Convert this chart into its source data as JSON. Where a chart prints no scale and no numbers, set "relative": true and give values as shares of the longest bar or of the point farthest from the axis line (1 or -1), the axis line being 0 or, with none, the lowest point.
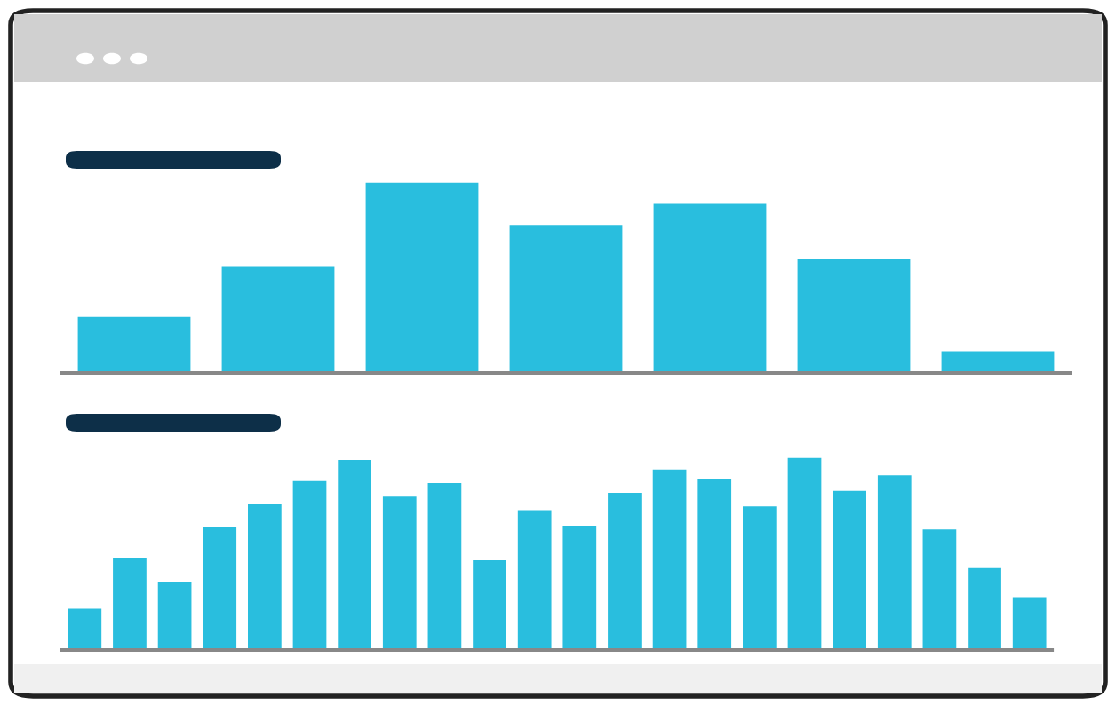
{
  "chart_data": [
    {
      "type": "bar",
      "relative": true,
      "color": "#29bede",
      "categories": [
        null,
        null,
        null,
        null,
        null,
        null,
        null
      ],
      "values": [
        0.3,
        0.56,
        1,
        0.78,
        0.89,
        0.6,
        0.12
      ]
    },
    {
      "type": "bar",
      "relative": true,
      "color": "#29bede",
      "categories": [
        null,
        null,
        null,
        null,
        null,
        null,
        null,
        null,
        null,
        null,
        null,
        null,
        null,
        null,
        null,
        null,
        null,
        null,
        null,
        null,
        null,
        null
      ],
      "values": [
        0.22,
        0.48,
        0.36,
        0.64,
        0.76,
        0.88,
        0.99,
        0.8,
        0.87,
        0.47,
        0.73,
        0.65,
        0.82,
        0.94,
        0.89,
        0.75,
        1,
        0.83,
        0.91,
        0.63,
        0.43,
        0.28
      ]
    }
  ]
}
